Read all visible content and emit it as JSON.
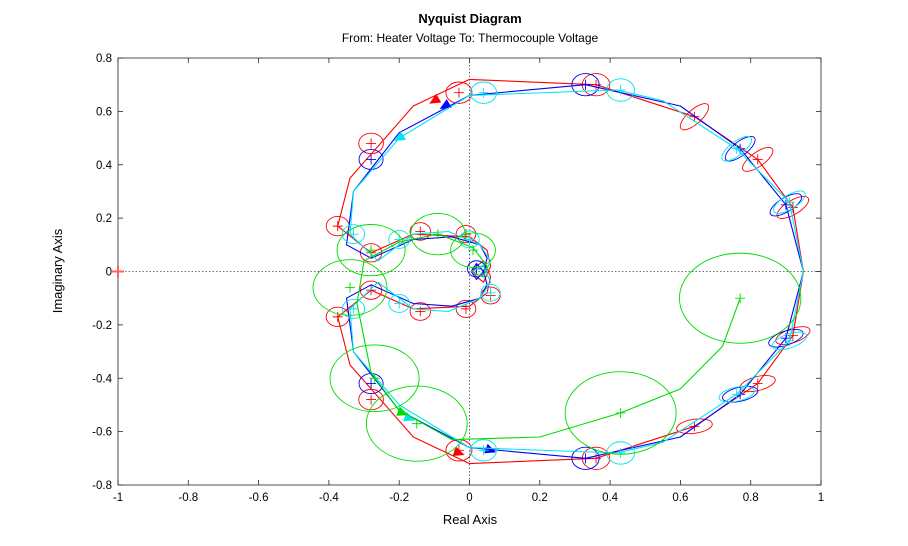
{
  "chart_data": {
    "type": "line",
    "title": "Nyquist Diagram",
    "subtitle": "From: Heater Voltage  To: Thermocouple Voltage",
    "xlabel": "Real Axis",
    "ylabel": "Imaginary Axis",
    "xlim": [
      -1,
      1
    ],
    "ylim": [
      -0.8,
      0.8
    ],
    "xticks": [
      "-1",
      "-0.8",
      "-0.6",
      "-0.4",
      "-0.2",
      "0",
      "0.2",
      "0.4",
      "0.6",
      "0.8",
      "1"
    ],
    "yticks": [
      "-0.8",
      "-0.6",
      "-0.4",
      "-0.2",
      "0",
      "0.2",
      "0.4",
      "0.6",
      "0.8"
    ],
    "grid": false,
    "critical_point": [
      -1,
      0
    ],
    "colors": {
      "red": "#ff0000",
      "blue": "#0000ff",
      "cyan": "#00e5ee",
      "green": "#00dd00",
      "critical": "#ff6060",
      "zero_lines": "#444444"
    },
    "series": [
      {
        "color": "red",
        "x": [
          0.95,
          0.92,
          0.82,
          0.64,
          0.36,
          0.0,
          -0.16,
          -0.34,
          -0.375,
          -0.28,
          -0.16,
          0.0,
          0.05,
          0.06,
          0.04,
          0.02,
          0.01,
          0.005,
          0.01,
          0.02,
          0.04,
          0.06,
          0.05,
          0.0,
          -0.16,
          -0.28,
          -0.375,
          -0.34,
          -0.16,
          0.0,
          0.36,
          0.64,
          0.82,
          0.92,
          0.95
        ],
        "y": [
          0.0,
          0.24,
          0.42,
          0.58,
          0.7,
          0.72,
          0.62,
          0.35,
          0.17,
          0.07,
          0.14,
          0.13,
          0.08,
          0.02,
          -0.04,
          -0.02,
          0.0,
          0.0,
          0.0,
          0.02,
          0.04,
          -0.02,
          -0.08,
          -0.13,
          -0.14,
          -0.07,
          -0.17,
          -0.35,
          -0.62,
          -0.72,
          -0.7,
          -0.58,
          -0.42,
          -0.24,
          0.0
        ],
        "ellipses_at": [
          [
            0.92,
            0.24
          ],
          [
            0.82,
            0.42
          ],
          [
            0.64,
            0.58
          ],
          [
            0.36,
            0.7
          ],
          [
            -0.03,
            0.67
          ],
          [
            -0.28,
            0.48
          ],
          [
            -0.375,
            0.17
          ],
          [
            -0.28,
            0.07
          ],
          [
            -0.14,
            0.15
          ],
          [
            -0.01,
            0.14
          ],
          [
            0.06,
            -0.09
          ],
          [
            -0.01,
            -0.14
          ],
          [
            -0.14,
            -0.15
          ],
          [
            -0.28,
            -0.07
          ],
          [
            -0.375,
            -0.17
          ],
          [
            -0.28,
            -0.48
          ],
          [
            -0.03,
            -0.67
          ],
          [
            0.36,
            -0.7
          ],
          [
            0.64,
            -0.58
          ],
          [
            0.82,
            -0.42
          ],
          [
            0.92,
            -0.24
          ]
        ],
        "arrows_at": [
          [
            -0.1,
            0.64
          ],
          [
            -0.03,
            -0.68
          ]
        ]
      },
      {
        "color": "blue",
        "x": [
          0.95,
          0.9,
          0.77,
          0.6,
          0.33,
          0.0,
          -0.2,
          -0.33,
          -0.35,
          -0.28,
          -0.16,
          -0.05,
          0.03,
          0.05,
          0.04,
          0.02,
          0.01,
          0.005,
          0.01,
          0.02,
          0.04,
          0.05,
          0.03,
          -0.05,
          -0.16,
          -0.28,
          -0.35,
          -0.33,
          -0.2,
          0.0,
          0.33,
          0.6,
          0.77,
          0.9,
          0.95
        ],
        "y": [
          0.0,
          0.25,
          0.46,
          0.62,
          0.7,
          0.66,
          0.52,
          0.3,
          0.1,
          0.05,
          0.12,
          0.13,
          0.1,
          0.05,
          0.0,
          -0.03,
          -0.01,
          0.0,
          0.01,
          0.03,
          0.0,
          -0.05,
          -0.1,
          -0.13,
          -0.12,
          -0.05,
          -0.1,
          -0.3,
          -0.52,
          -0.66,
          -0.7,
          -0.62,
          -0.46,
          -0.25,
          0.0
        ],
        "ellipses_at": [
          [
            0.9,
            0.25
          ],
          [
            0.77,
            0.46
          ],
          [
            0.33,
            0.7
          ],
          [
            -0.28,
            0.42
          ],
          [
            0.02,
            0.01
          ],
          [
            -0.28,
            -0.42
          ],
          [
            0.33,
            -0.7
          ],
          [
            0.77,
            -0.46
          ],
          [
            0.9,
            -0.25
          ]
        ],
        "arrows_at": [
          [
            -0.07,
            0.62
          ],
          [
            0.06,
            -0.67
          ]
        ]
      },
      {
        "color": "cyan",
        "x": [
          0.95,
          0.91,
          0.76,
          0.55,
          0.42,
          0.0,
          -0.2,
          -0.33,
          -0.34,
          -0.26,
          -0.16,
          -0.06,
          0.03,
          0.06,
          0.04,
          0.02,
          0.01,
          0.005,
          0.01,
          0.02,
          0.04,
          0.06,
          0.03,
          -0.06,
          -0.16,
          -0.26,
          -0.34,
          -0.33,
          -0.2,
          0.0,
          0.42,
          0.55,
          0.76,
          0.91,
          0.95
        ],
        "y": [
          0.0,
          0.26,
          0.46,
          0.64,
          0.68,
          0.66,
          0.5,
          0.3,
          0.14,
          0.04,
          0.14,
          0.15,
          0.1,
          0.04,
          -0.02,
          -0.01,
          0.0,
          0.0,
          0.0,
          0.01,
          0.02,
          -0.04,
          -0.1,
          -0.15,
          -0.14,
          -0.04,
          -0.14,
          -0.3,
          -0.5,
          -0.66,
          -0.68,
          -0.64,
          -0.46,
          -0.26,
          0.0
        ],
        "ellipses_at": [
          [
            0.91,
            0.26
          ],
          [
            0.76,
            0.46
          ],
          [
            0.43,
            0.68
          ],
          [
            0.04,
            0.67
          ],
          [
            -0.33,
            0.14
          ],
          [
            -0.2,
            0.12
          ],
          [
            0.0,
            0.12
          ],
          [
            0.06,
            -0.08
          ],
          [
            -0.2,
            -0.12
          ],
          [
            -0.33,
            -0.14
          ],
          [
            0.04,
            -0.67
          ],
          [
            0.43,
            -0.68
          ],
          [
            0.76,
            -0.46
          ],
          [
            0.91,
            -0.26
          ]
        ],
        "arrows_at": [
          [
            -0.2,
            0.5
          ],
          [
            -0.17,
            -0.55
          ]
        ]
      },
      {
        "color": "green",
        "x": [
          0.77,
          0.72,
          0.6,
          0.43,
          0.2,
          -0.05,
          -0.2,
          -0.28,
          -0.32,
          -0.3,
          -0.2,
          -0.09,
          0.01,
          0.05,
          0.04,
          0.02,
          0.01,
          0.005
        ],
        "y": [
          -0.1,
          -0.28,
          -0.44,
          -0.53,
          -0.62,
          -0.63,
          -0.52,
          -0.38,
          -0.12,
          0.04,
          0.11,
          0.14,
          0.09,
          0.02,
          -0.02,
          -0.01,
          0.0,
          0.0
        ],
        "ellipses_at": [
          [
            0.77,
            -0.1
          ],
          [
            0.43,
            -0.53
          ],
          [
            -0.15,
            -0.57
          ],
          [
            -0.27,
            -0.4
          ],
          [
            -0.34,
            -0.06
          ],
          [
            -0.28,
            0.08
          ],
          [
            -0.09,
            0.14
          ],
          [
            0.01,
            0.08
          ]
        ],
        "arrows_at": [
          [
            -0.19,
            -0.53
          ]
        ]
      }
    ]
  }
}
